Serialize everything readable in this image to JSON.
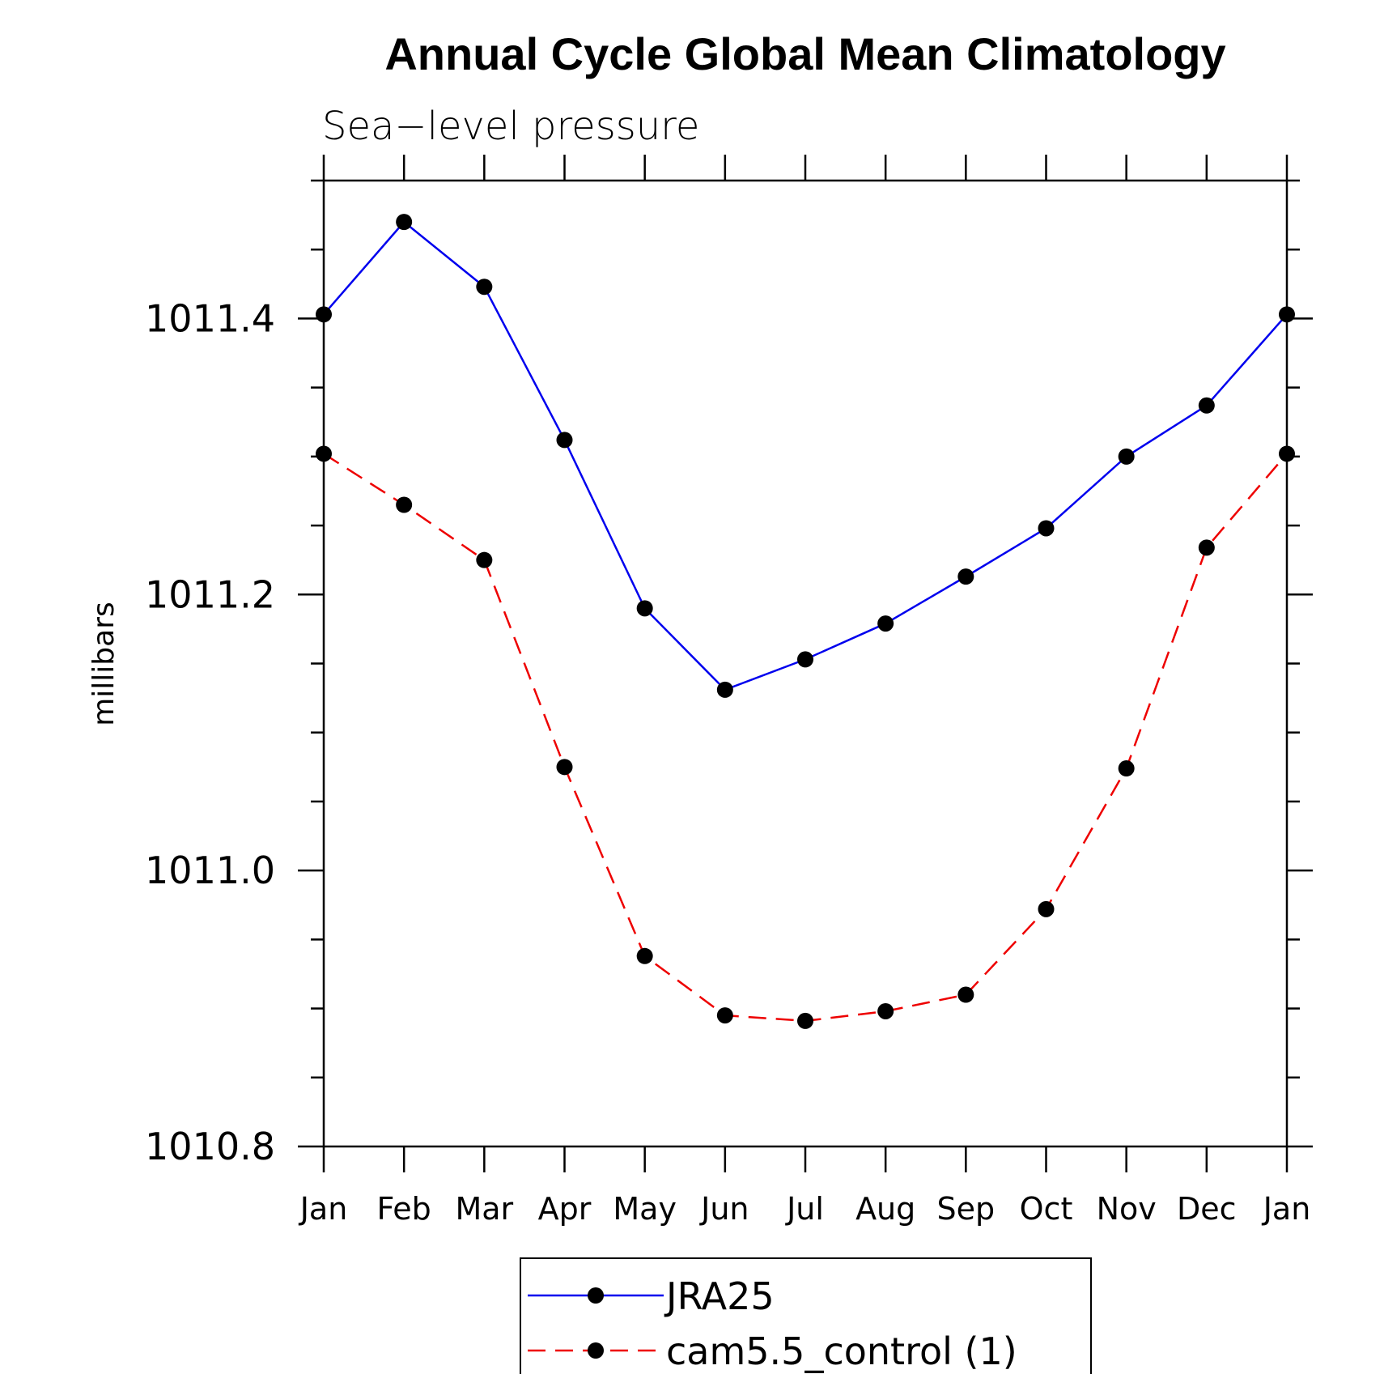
{
  "chart_data": {
    "type": "line",
    "title": "Annual Cycle Global Mean Climatology",
    "subtitle": "Sea−level pressure",
    "ylabel": "millibars",
    "xlabel": "",
    "categories": [
      "Jan",
      "Feb",
      "Mar",
      "Apr",
      "May",
      "Jun",
      "Jul",
      "Aug",
      "Sep",
      "Oct",
      "Nov",
      "Dec",
      "Jan"
    ],
    "ylim": [
      1010.8,
      1011.5
    ],
    "yticks": [
      1010.8,
      1011.0,
      1011.2,
      1011.4
    ],
    "ytick_labels": [
      "1010.8",
      "1011.0",
      "1011.2",
      "1011.4"
    ],
    "series": [
      {
        "name": "JRA25",
        "color": "#0000ee",
        "dash": "solid",
        "values": [
          1011.403,
          1011.47,
          1011.423,
          1011.312,
          1011.19,
          1011.131,
          1011.153,
          1011.179,
          1011.213,
          1011.248,
          1011.3,
          1011.337,
          1011.403
        ]
      },
      {
        "name": "cam5.5_control (1)",
        "color": "#ee0000",
        "dash": "dashed",
        "values": [
          1011.302,
          1011.265,
          1011.225,
          1011.075,
          1010.938,
          1010.895,
          1010.891,
          1010.898,
          1010.91,
          1010.972,
          1011.074,
          1011.234,
          1011.302
        ]
      }
    ],
    "legend_position": "bottom-center",
    "grid": false
  }
}
